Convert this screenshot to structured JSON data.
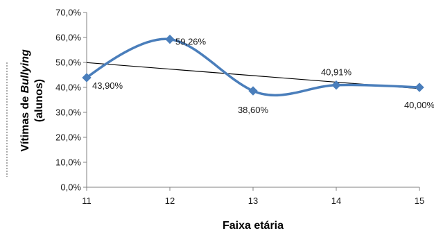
{
  "chart_data": {
    "type": "line",
    "xlabel": "Faixa etária",
    "ylabel": {
      "line1_prefix": "Vítimas de ",
      "line1_italic": "Bullying",
      "line2": "(alunos)"
    },
    "x": [
      11,
      12,
      13,
      14,
      15
    ],
    "x_tick_labels": [
      "11",
      "12",
      "13",
      "14",
      "15"
    ],
    "ylim": [
      0,
      70
    ],
    "y_ticks": [
      0,
      10,
      20,
      30,
      40,
      50,
      60,
      70
    ],
    "y_tick_labels": [
      "0,0%",
      "10,0%",
      "20,0%",
      "30,0%",
      "40,0%",
      "50,0%",
      "60,0%",
      "70,0%"
    ],
    "series": [
      {
        "values": [
          43.9,
          59.26,
          38.6,
          40.91,
          40.0
        ],
        "labels": [
          "43,90%",
          "59,26%",
          "38,60%",
          "40,91%",
          "40,00%"
        ],
        "color": "#4a7ebb",
        "smooth": true,
        "marker": "diamond"
      }
    ],
    "trendline": {
      "type": "linear",
      "color": "#000000",
      "start": 49.92,
      "end": 39.5
    },
    "grid": false,
    "legend": "none"
  }
}
